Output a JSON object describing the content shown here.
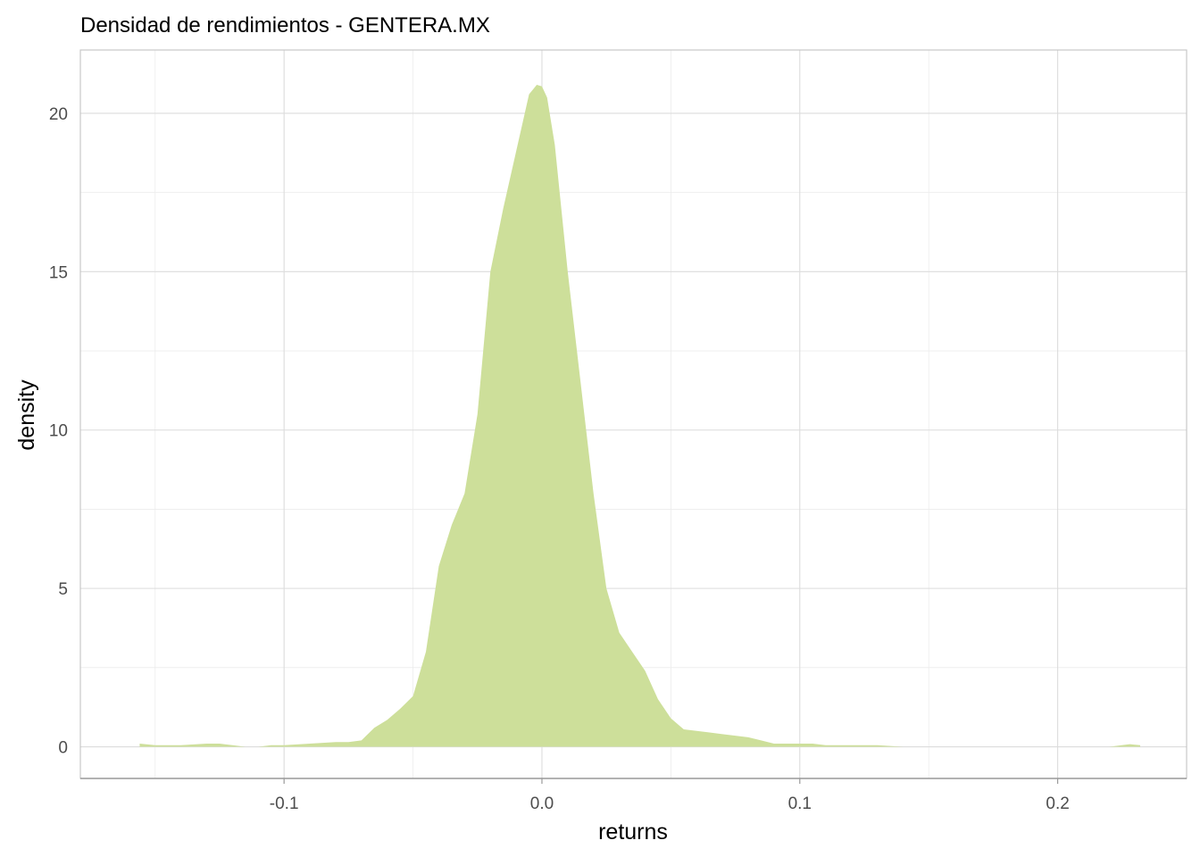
{
  "chart_data": {
    "type": "area",
    "title": "Densidad de rendimientos - GENTERA.MX",
    "xlabel": "returns",
    "ylabel": "density",
    "xlim": [
      -0.179,
      0.25
    ],
    "ylim": [
      -1.0,
      22.0
    ],
    "x_ticks": [
      -0.1,
      0.0,
      0.1,
      0.2
    ],
    "x_tick_labels": [
      "-0.1",
      "0.0",
      "0.1",
      "0.2"
    ],
    "y_ticks": [
      0,
      5,
      10,
      15,
      20
    ],
    "y_tick_labels": [
      "0",
      "5",
      "10",
      "15",
      "20"
    ],
    "grid": true,
    "legend": "none",
    "fill_color": "#cddf9a",
    "series": [
      {
        "x": [
          -0.156,
          -0.15,
          -0.14,
          -0.13,
          -0.125,
          -0.12,
          -0.115,
          -0.11,
          -0.105,
          -0.1,
          -0.09,
          -0.08,
          -0.075,
          -0.07,
          -0.065,
          -0.06,
          -0.055,
          -0.05,
          -0.045,
          -0.04,
          -0.035,
          -0.03,
          -0.025,
          -0.02,
          -0.015,
          -0.01,
          -0.005,
          -0.002,
          0.0,
          0.002,
          0.005,
          0.01,
          0.015,
          0.02,
          0.025,
          0.03,
          0.035,
          0.04,
          0.045,
          0.05,
          0.055,
          0.06,
          0.065,
          0.07,
          0.075,
          0.08,
          0.085,
          0.09,
          0.095,
          0.1,
          0.105,
          0.11,
          0.12,
          0.13,
          0.14,
          0.15,
          0.16,
          0.17,
          0.18,
          0.19,
          0.2,
          0.21,
          0.22,
          0.228,
          0.232
        ],
        "y": [
          0.1,
          0.05,
          0.05,
          0.1,
          0.1,
          0.05,
          0.0,
          0.0,
          0.05,
          0.05,
          0.1,
          0.15,
          0.15,
          0.2,
          0.6,
          0.85,
          1.2,
          1.6,
          3.0,
          5.7,
          7.0,
          8.0,
          10.5,
          15.0,
          17.0,
          18.8,
          20.6,
          20.9,
          20.85,
          20.5,
          19.0,
          15.0,
          11.5,
          8.0,
          5.0,
          3.6,
          3.0,
          2.4,
          1.5,
          0.9,
          0.55,
          0.5,
          0.45,
          0.4,
          0.35,
          0.3,
          0.2,
          0.1,
          0.1,
          0.1,
          0.1,
          0.05,
          0.05,
          0.05,
          0.0,
          0.0,
          0.0,
          0.0,
          0.0,
          0.0,
          0.0,
          0.0,
          0.0,
          0.08,
          0.05
        ]
      }
    ]
  }
}
